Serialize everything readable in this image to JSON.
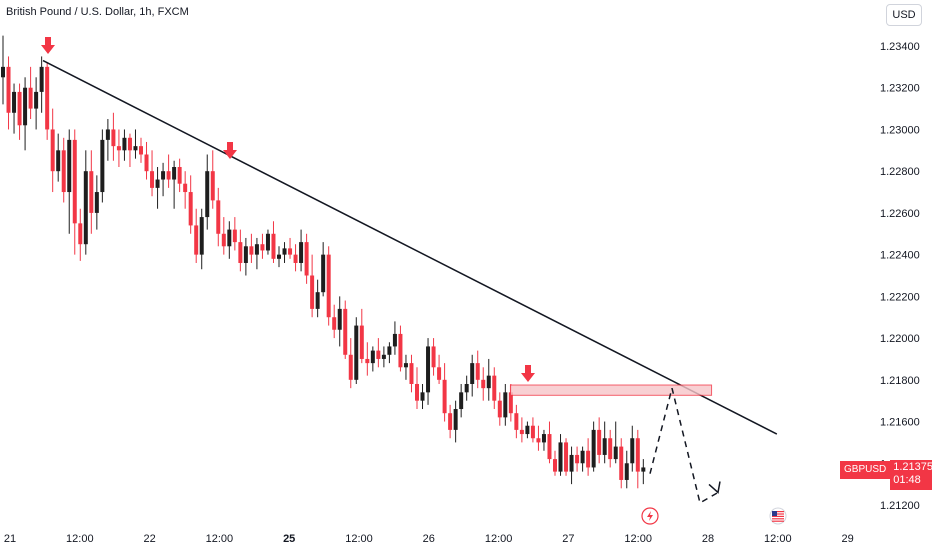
{
  "header": {
    "title": "British Pound / U.S. Dollar, 1h, FXCM",
    "currency_button": "USD"
  },
  "price_label": {
    "symbol": "GBPUSD",
    "price": "1.21375",
    "countdown": "01:48"
  },
  "colors": {
    "up": "#1e1e1e",
    "down": "#f23645",
    "line": "#131722",
    "zone_fill": "#f7c5c9",
    "zone_stroke": "#f23645"
  },
  "icons": [
    "arrow-down-marker-icon",
    "flash-event-icon",
    "us-flag-event-icon"
  ],
  "chart_data": {
    "type": "candlestick",
    "y_ticks": [
      "1.23400",
      "1.23200",
      "1.23000",
      "1.22800",
      "1.22600",
      "1.22400",
      "1.22200",
      "1.22000",
      "1.21800",
      "1.21600",
      "1.21400",
      "1.21200"
    ],
    "x_ticks": [
      {
        "label": "21",
        "bold": false
      },
      {
        "label": "12:00",
        "bold": false
      },
      {
        "label": "22",
        "bold": false
      },
      {
        "label": "12:00",
        "bold": false
      },
      {
        "label": "25",
        "bold": true
      },
      {
        "label": "12:00",
        "bold": false
      },
      {
        "label": "26",
        "bold": false
      },
      {
        "label": "12:00",
        "bold": false
      },
      {
        "label": "27",
        "bold": false
      },
      {
        "label": "12:00",
        "bold": false
      },
      {
        "label": "28",
        "bold": false
      },
      {
        "label": "12:00",
        "bold": false
      },
      {
        "label": "29",
        "bold": false
      }
    ],
    "ylim": [
      1.2112,
      1.2352
    ],
    "candles": [
      [
        1.2325,
        1.2345,
        1.2312,
        1.233
      ],
      [
        1.233,
        1.2335,
        1.23,
        1.2308
      ],
      [
        1.2308,
        1.2322,
        1.2298,
        1.2318
      ],
      [
        1.2318,
        1.2322,
        1.2295,
        1.2302
      ],
      [
        1.2302,
        1.2325,
        1.229,
        1.232
      ],
      [
        1.232,
        1.233,
        1.2305,
        1.231
      ],
      [
        1.231,
        1.2325,
        1.23,
        1.2318
      ],
      [
        1.2318,
        1.2335,
        1.2308,
        1.233
      ],
      [
        1.233,
        1.2332,
        1.2295,
        1.23
      ],
      [
        1.23,
        1.231,
        1.227,
        1.228
      ],
      [
        1.228,
        1.2298,
        1.2275,
        1.229
      ],
      [
        1.229,
        1.2296,
        1.2265,
        1.227
      ],
      [
        1.227,
        1.23,
        1.225,
        1.2295
      ],
      [
        1.2295,
        1.23,
        1.224,
        1.2255
      ],
      [
        1.2255,
        1.2262,
        1.2237,
        1.2245
      ],
      [
        1.2245,
        1.229,
        1.224,
        1.228
      ],
      [
        1.228,
        1.229,
        1.225,
        1.226
      ],
      [
        1.226,
        1.2278,
        1.2252,
        1.227
      ],
      [
        1.227,
        1.23,
        1.2265,
        1.2295
      ],
      [
        1.2295,
        1.2305,
        1.2285,
        1.23
      ],
      [
        1.23,
        1.2308,
        1.2285,
        1.2292
      ],
      [
        1.2292,
        1.23,
        1.2282,
        1.229
      ],
      [
        1.229,
        1.23,
        1.2285,
        1.2296
      ],
      [
        1.2296,
        1.2298,
        1.2282,
        1.229
      ],
      [
        1.229,
        1.23,
        1.2286,
        1.2292
      ],
      [
        1.2292,
        1.2296,
        1.2284,
        1.2288
      ],
      [
        1.2288,
        1.2294,
        1.2276,
        1.228
      ],
      [
        1.228,
        1.229,
        1.2268,
        1.2272
      ],
      [
        1.2272,
        1.2282,
        1.2262,
        1.2276
      ],
      [
        1.2276,
        1.2284,
        1.2268,
        1.228
      ],
      [
        1.228,
        1.2288,
        1.2272,
        1.2276
      ],
      [
        1.2276,
        1.2285,
        1.2262,
        1.2282
      ],
      [
        1.2282,
        1.2286,
        1.227,
        1.2274
      ],
      [
        1.2274,
        1.228,
        1.2262,
        1.227
      ],
      [
        1.227,
        1.2278,
        1.225,
        1.2254
      ],
      [
        1.2254,
        1.2262,
        1.2236,
        1.224
      ],
      [
        1.224,
        1.2262,
        1.2233,
        1.2258
      ],
      [
        1.2258,
        1.2288,
        1.2252,
        1.228
      ],
      [
        1.228,
        1.229,
        1.2262,
        1.2266
      ],
      [
        1.2266,
        1.2272,
        1.2244,
        1.225
      ],
      [
        1.225,
        1.2258,
        1.224,
        1.2244
      ],
      [
        1.2244,
        1.2256,
        1.2238,
        1.2252
      ],
      [
        1.2252,
        1.2258,
        1.2242,
        1.2246
      ],
      [
        1.2246,
        1.2252,
        1.2232,
        1.2236
      ],
      [
        1.2236,
        1.2248,
        1.223,
        1.2244
      ],
      [
        1.2244,
        1.225,
        1.2236,
        1.224
      ],
      [
        1.224,
        1.2248,
        1.2233,
        1.2245
      ],
      [
        1.2245,
        1.225,
        1.2238,
        1.2242
      ],
      [
        1.2242,
        1.2252,
        1.224,
        1.225
      ],
      [
        1.225,
        1.2256,
        1.2236,
        1.2238
      ],
      [
        1.2238,
        1.2244,
        1.2234,
        1.224
      ],
      [
        1.224,
        1.2246,
        1.2236,
        1.2243
      ],
      [
        1.2243,
        1.2248,
        1.2238,
        1.224
      ],
      [
        1.224,
        1.2245,
        1.2232,
        1.2236
      ],
      [
        1.2236,
        1.2252,
        1.2232,
        1.2246
      ],
      [
        1.2246,
        1.225,
        1.2226,
        1.223
      ],
      [
        1.223,
        1.224,
        1.221,
        1.2214
      ],
      [
        1.2214,
        1.2228,
        1.221,
        1.2222
      ],
      [
        1.2222,
        1.2246,
        1.222,
        1.224
      ],
      [
        1.224,
        1.2244,
        1.2206,
        1.221
      ],
      [
        1.221,
        1.2216,
        1.22,
        1.2204
      ],
      [
        1.2204,
        1.222,
        1.2196,
        1.2214
      ],
      [
        1.2214,
        1.2218,
        1.219,
        1.2192
      ],
      [
        1.2192,
        1.22,
        1.2176,
        1.218
      ],
      [
        1.218,
        1.221,
        1.2178,
        1.2206
      ],
      [
        1.2206,
        1.2214,
        1.2188,
        1.219
      ],
      [
        1.219,
        1.2198,
        1.2182,
        1.2188
      ],
      [
        1.2188,
        1.2196,
        1.2184,
        1.2194
      ],
      [
        1.2194,
        1.22,
        1.2186,
        1.219
      ],
      [
        1.219,
        1.2196,
        1.2186,
        1.2192
      ],
      [
        1.2192,
        1.2198,
        1.2188,
        1.2196
      ],
      [
        1.2196,
        1.2208,
        1.2192,
        1.2202
      ],
      [
        1.2202,
        1.2206,
        1.2184,
        1.2186
      ],
      [
        1.2186,
        1.2192,
        1.218,
        1.2188
      ],
      [
        1.2188,
        1.2192,
        1.2174,
        1.2178
      ],
      [
        1.2178,
        1.2186,
        1.2166,
        1.217
      ],
      [
        1.217,
        1.2178,
        1.2166,
        1.2174
      ],
      [
        1.2174,
        1.22,
        1.2168,
        1.2196
      ],
      [
        1.2196,
        1.22,
        1.2182,
        1.2186
      ],
      [
        1.2186,
        1.2192,
        1.2178,
        1.218
      ],
      [
        1.218,
        1.2188,
        1.216,
        1.2164
      ],
      [
        1.2164,
        1.2168,
        1.2152,
        1.2156
      ],
      [
        1.2156,
        1.217,
        1.215,
        1.2166
      ],
      [
        1.2166,
        1.2178,
        1.2162,
        1.2174
      ],
      [
        1.2174,
        1.2182,
        1.217,
        1.2178
      ],
      [
        1.2178,
        1.2192,
        1.2172,
        1.2188
      ],
      [
        1.2188,
        1.2194,
        1.2176,
        1.218
      ],
      [
        1.218,
        1.2186,
        1.217,
        1.2176
      ],
      [
        1.2176,
        1.219,
        1.217,
        1.2182
      ],
      [
        1.2182,
        1.2186,
        1.2166,
        1.217
      ],
      [
        1.217,
        1.2174,
        1.2158,
        1.2162
      ],
      [
        1.2162,
        1.2178,
        1.2158,
        1.2174
      ],
      [
        1.2174,
        1.2178,
        1.216,
        1.2164
      ],
      [
        1.2164,
        1.2168,
        1.2152,
        1.2156
      ],
      [
        1.2156,
        1.2162,
        1.215,
        1.2154
      ],
      [
        1.2154,
        1.216,
        1.2152,
        1.2158
      ],
      [
        1.2158,
        1.2162,
        1.215,
        1.2152
      ],
      [
        1.2152,
        1.2158,
        1.2146,
        1.215
      ],
      [
        1.215,
        1.2156,
        1.2146,
        1.2154
      ],
      [
        1.2154,
        1.216,
        1.214,
        1.2142
      ],
      [
        1.2142,
        1.2146,
        1.2134,
        1.2136
      ],
      [
        1.2136,
        1.2154,
        1.2134,
        1.215
      ],
      [
        1.215,
        1.2152,
        1.2134,
        1.2136
      ],
      [
        1.2136,
        1.2148,
        1.213,
        1.2144
      ],
      [
        1.2144,
        1.2148,
        1.2136,
        1.214
      ],
      [
        1.214,
        1.2148,
        1.2136,
        1.2146
      ],
      [
        1.2146,
        1.2152,
        1.2134,
        1.2138
      ],
      [
        1.2138,
        1.216,
        1.2136,
        1.2156
      ],
      [
        1.2156,
        1.2162,
        1.214,
        1.2144
      ],
      [
        1.2144,
        1.216,
        1.214,
        1.2152
      ],
      [
        1.2152,
        1.2156,
        1.2138,
        1.2142
      ],
      [
        1.2142,
        1.216,
        1.214,
        1.2148
      ],
      [
        1.2148,
        1.2152,
        1.2128,
        1.2132
      ],
      [
        1.2132,
        1.2146,
        1.2128,
        1.214
      ],
      [
        1.214,
        1.2158,
        1.2136,
        1.2152
      ],
      [
        1.2152,
        1.2156,
        1.2128,
        1.2136
      ],
      [
        1.2136,
        1.2142,
        1.213,
        1.2138
      ]
    ],
    "trendline": {
      "from": [
        0,
        1.2333
      ],
      "to": [
        117,
        1.2154
      ]
    },
    "resistance_zone": {
      "from": [
        72,
        1.21775
      ],
      "to": [
        103,
        1.21745
      ]
    },
    "projection_path": [
      [
        94,
        1.2135
      ],
      [
        97,
        1.2176
      ],
      [
        101,
        1.2121
      ],
      [
        103,
        1.2126
      ]
    ],
    "down_arrows": [
      {
        "index": 4,
        "value": 1.234
      },
      {
        "index": 36,
        "value": 1.229
      },
      {
        "index": 74,
        "value": 1.2185
      }
    ],
    "event_icons": [
      {
        "icon": "flash-event-icon",
        "label_index": 9
      },
      {
        "icon": "us-flag-event-icon",
        "label_index": 11
      }
    ]
  }
}
